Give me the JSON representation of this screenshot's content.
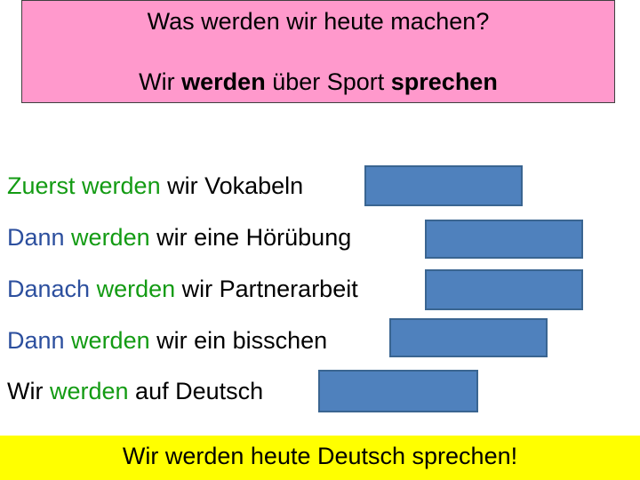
{
  "header": {
    "question": "Was werden wir heute machen?",
    "answer_parts": [
      "Wir ",
      "werden",
      " über Sport ",
      "sprechen"
    ]
  },
  "sentences": [
    {
      "start": "Zuerst",
      "verb": " werden",
      "rest": " wir Vokabeln",
      "start_color": "green"
    },
    {
      "start": "Dann",
      "verb": " werden",
      "rest": " wir eine Hörübung",
      "start_color": "blue"
    },
    {
      "start": "Danach",
      "verb": " werden",
      "rest": " wir Partnerarbeit",
      "start_color": "blue"
    },
    {
      "start": "Dann",
      "verb": " werden",
      "rest": " wir ein bisschen",
      "start_color": "blue"
    },
    {
      "start": "Wir",
      "verb": " werden",
      "rest": " auf Deutsch",
      "start_color": "black"
    }
  ],
  "footer": {
    "text": "Wir werden heute Deutsch sprechen!"
  },
  "colors": {
    "title_bg": "#ff99cc",
    "verb": "#139b13",
    "start_blue": "#2c4f9e",
    "blank_fill": "#4f81bd",
    "footer_bg": "#ffff00"
  }
}
